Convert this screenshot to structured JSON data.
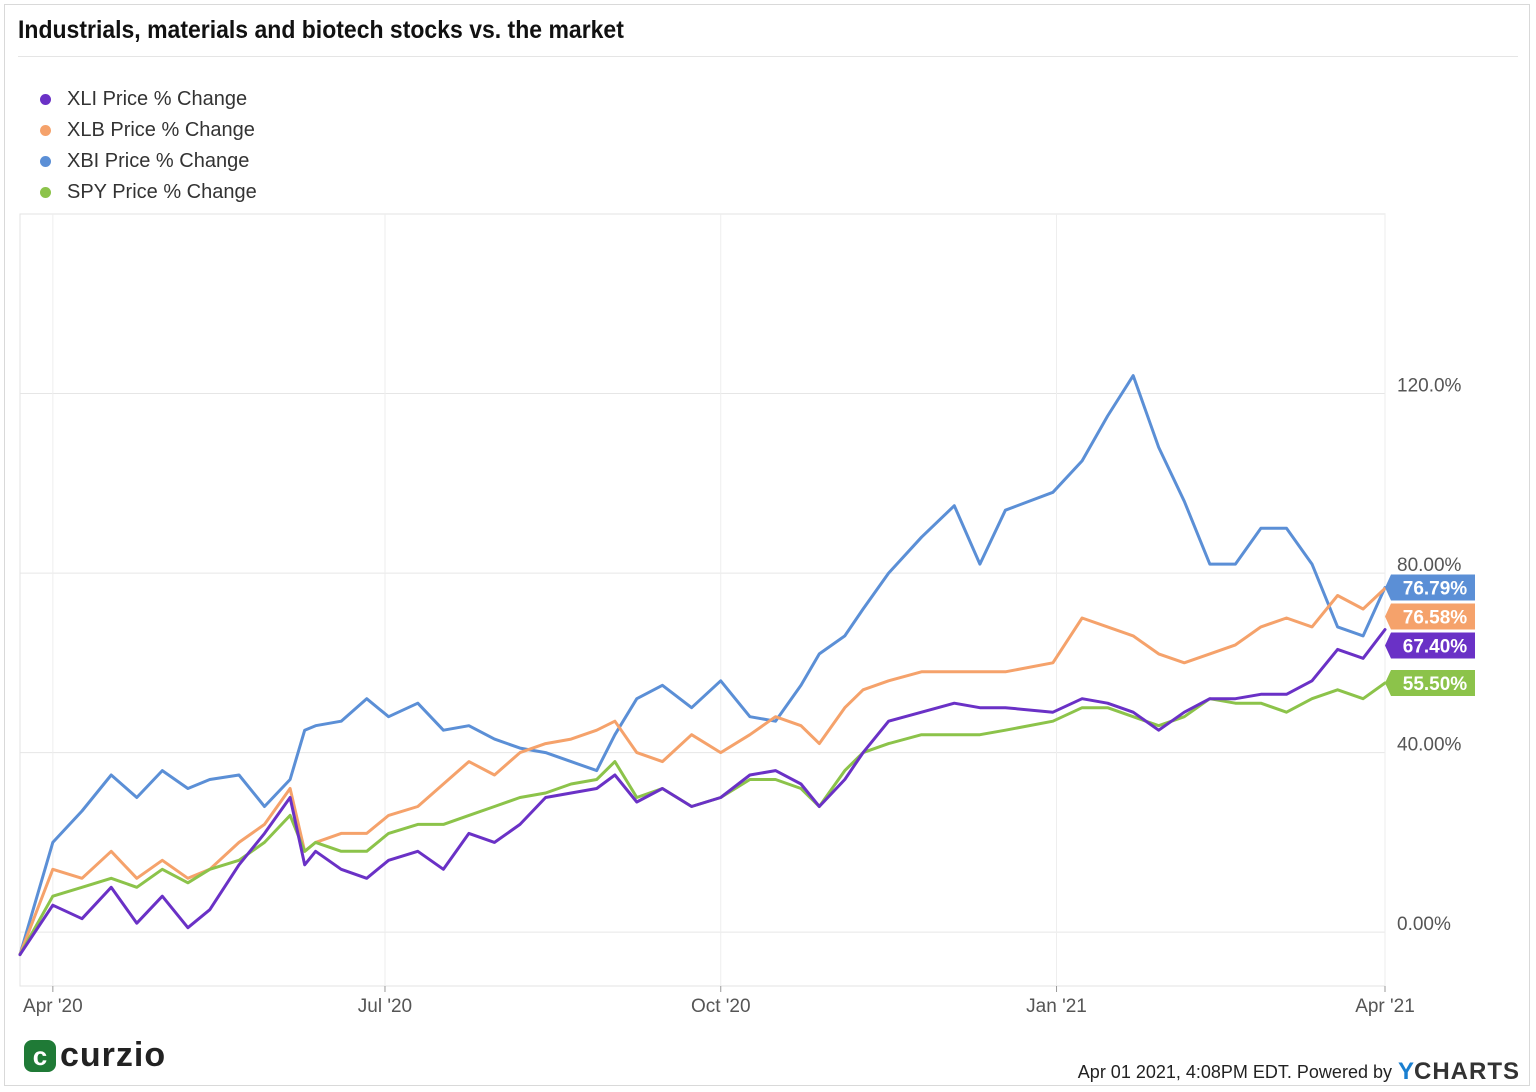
{
  "title": "Industrials, materials and biotech stocks vs. the market",
  "legend": [
    {
      "label": "XLI Price % Change",
      "color": "#6a31c6"
    },
    {
      "label": "XLB Price % Change",
      "color": "#f5a26b"
    },
    {
      "label": "XBI Price % Change",
      "color": "#5b8fd6"
    },
    {
      "label": "SPY Price % Change",
      "color": "#8cc34a"
    }
  ],
  "footer": {
    "logo_text": "curzio",
    "logo_mark": "c",
    "timestamp": "Apr 01 2021, 4:08PM EDT. Powered by",
    "brand_y": "Y",
    "brand_rest": "CHARTS"
  },
  "chart_data": {
    "type": "line",
    "title": "Industrials, materials and biotech stocks vs. the market",
    "xlabel": "",
    "ylabel": "",
    "x_ticks": [
      "Apr '20",
      "Jul '20",
      "Oct '20",
      "Jan '21",
      "Apr '21"
    ],
    "y_ticks": [
      "0.00%",
      "40.00%",
      "80.00%",
      "120.0%"
    ],
    "y_tick_values": [
      0,
      40,
      80,
      120
    ],
    "ylim": [
      -12,
      160
    ],
    "xlim": [
      "2020-03-23",
      "2021-04-01"
    ],
    "grid": true,
    "legend_position": "top-left",
    "series": [
      {
        "name": "XLI Price % Change",
        "color": "#6a31c6",
        "end_label": "67.40%",
        "x": [
          "2020-03-23",
          "2020-04-01",
          "2020-04-09",
          "2020-04-17",
          "2020-04-24",
          "2020-05-01",
          "2020-05-08",
          "2020-05-14",
          "2020-05-22",
          "2020-05-29",
          "2020-06-05",
          "2020-06-09",
          "2020-06-12",
          "2020-06-19",
          "2020-06-26",
          "2020-07-02",
          "2020-07-10",
          "2020-07-17",
          "2020-07-24",
          "2020-07-31",
          "2020-08-07",
          "2020-08-14",
          "2020-08-21",
          "2020-08-28",
          "2020-09-02",
          "2020-09-08",
          "2020-09-15",
          "2020-09-23",
          "2020-10-01",
          "2020-10-09",
          "2020-10-16",
          "2020-10-23",
          "2020-10-28",
          "2020-11-04",
          "2020-11-09",
          "2020-11-16",
          "2020-11-25",
          "2020-12-04",
          "2020-12-11",
          "2020-12-18",
          "2020-12-31",
          "2021-01-08",
          "2021-01-15",
          "2021-01-22",
          "2021-01-29",
          "2021-02-05",
          "2021-02-12",
          "2021-02-19",
          "2021-02-26",
          "2021-03-05",
          "2021-03-12",
          "2021-03-19",
          "2021-03-26",
          "2021-04-01"
        ],
        "y": [
          -5,
          6,
          3,
          10,
          2,
          8,
          1,
          5,
          15,
          22,
          30,
          15,
          18,
          14,
          12,
          16,
          18,
          14,
          22,
          20,
          24,
          30,
          31,
          32,
          35,
          29,
          32,
          28,
          30,
          35,
          36,
          33,
          28,
          34,
          40,
          47,
          49,
          51,
          50,
          50,
          49,
          52,
          51,
          49,
          45,
          49,
          52,
          52,
          53,
          53,
          56,
          63,
          61,
          67.4
        ]
      },
      {
        "name": "XLB Price % Change",
        "color": "#f5a26b",
        "end_label": "76.58%",
        "x": [
          "2020-03-23",
          "2020-04-01",
          "2020-04-09",
          "2020-04-17",
          "2020-04-24",
          "2020-05-01",
          "2020-05-08",
          "2020-05-14",
          "2020-05-22",
          "2020-05-29",
          "2020-06-05",
          "2020-06-09",
          "2020-06-12",
          "2020-06-19",
          "2020-06-26",
          "2020-07-02",
          "2020-07-10",
          "2020-07-17",
          "2020-07-24",
          "2020-07-31",
          "2020-08-07",
          "2020-08-14",
          "2020-08-21",
          "2020-08-28",
          "2020-09-02",
          "2020-09-08",
          "2020-09-15",
          "2020-09-23",
          "2020-10-01",
          "2020-10-09",
          "2020-10-16",
          "2020-10-23",
          "2020-10-28",
          "2020-11-04",
          "2020-11-09",
          "2020-11-16",
          "2020-11-25",
          "2020-12-04",
          "2020-12-11",
          "2020-12-18",
          "2020-12-31",
          "2021-01-08",
          "2021-01-15",
          "2021-01-22",
          "2021-01-29",
          "2021-02-05",
          "2021-02-12",
          "2021-02-19",
          "2021-02-26",
          "2021-03-05",
          "2021-03-12",
          "2021-03-19",
          "2021-03-26",
          "2021-04-01"
        ],
        "y": [
          -5,
          14,
          12,
          18,
          12,
          16,
          12,
          14,
          20,
          24,
          32,
          18,
          20,
          22,
          22,
          26,
          28,
          33,
          38,
          35,
          40,
          42,
          43,
          45,
          47,
          40,
          38,
          44,
          40,
          44,
          48,
          46,
          42,
          50,
          54,
          56,
          58,
          58,
          58,
          58,
          60,
          70,
          68,
          66,
          62,
          60,
          62,
          64,
          68,
          70,
          68,
          75,
          72,
          76.58
        ]
      },
      {
        "name": "XBI Price % Change",
        "color": "#5b8fd6",
        "end_label": "76.79%",
        "x": [
          "2020-03-23",
          "2020-04-01",
          "2020-04-09",
          "2020-04-17",
          "2020-04-24",
          "2020-05-01",
          "2020-05-08",
          "2020-05-14",
          "2020-05-22",
          "2020-05-29",
          "2020-06-05",
          "2020-06-09",
          "2020-06-12",
          "2020-06-19",
          "2020-06-26",
          "2020-07-02",
          "2020-07-10",
          "2020-07-17",
          "2020-07-24",
          "2020-07-31",
          "2020-08-07",
          "2020-08-14",
          "2020-08-21",
          "2020-08-28",
          "2020-09-02",
          "2020-09-08",
          "2020-09-15",
          "2020-09-23",
          "2020-10-01",
          "2020-10-09",
          "2020-10-16",
          "2020-10-23",
          "2020-10-28",
          "2020-11-04",
          "2020-11-09",
          "2020-11-16",
          "2020-11-25",
          "2020-12-04",
          "2020-12-11",
          "2020-12-18",
          "2020-12-31",
          "2021-01-08",
          "2021-01-15",
          "2021-01-22",
          "2021-01-29",
          "2021-02-05",
          "2021-02-12",
          "2021-02-19",
          "2021-02-26",
          "2021-03-05",
          "2021-03-12",
          "2021-03-19",
          "2021-03-26",
          "2021-04-01"
        ],
        "y": [
          -5,
          20,
          27,
          35,
          30,
          36,
          32,
          34,
          35,
          28,
          34,
          45,
          46,
          47,
          52,
          48,
          51,
          45,
          46,
          43,
          41,
          40,
          38,
          36,
          44,
          52,
          55,
          50,
          56,
          48,
          47,
          55,
          62,
          66,
          72,
          80,
          88,
          95,
          82,
          94,
          98,
          105,
          115,
          124,
          108,
          96,
          82,
          82,
          90,
          90,
          82,
          68,
          66,
          76.79
        ]
      },
      {
        "name": "SPY Price % Change",
        "color": "#8cc34a",
        "end_label": "55.50%",
        "x": [
          "2020-03-23",
          "2020-04-01",
          "2020-04-09",
          "2020-04-17",
          "2020-04-24",
          "2020-05-01",
          "2020-05-08",
          "2020-05-14",
          "2020-05-22",
          "2020-05-29",
          "2020-06-05",
          "2020-06-09",
          "2020-06-12",
          "2020-06-19",
          "2020-06-26",
          "2020-07-02",
          "2020-07-10",
          "2020-07-17",
          "2020-07-24",
          "2020-07-31",
          "2020-08-07",
          "2020-08-14",
          "2020-08-21",
          "2020-08-28",
          "2020-09-02",
          "2020-09-08",
          "2020-09-15",
          "2020-09-23",
          "2020-10-01",
          "2020-10-09",
          "2020-10-16",
          "2020-10-23",
          "2020-10-28",
          "2020-11-04",
          "2020-11-09",
          "2020-11-16",
          "2020-11-25",
          "2020-12-04",
          "2020-12-11",
          "2020-12-18",
          "2020-12-31",
          "2021-01-08",
          "2021-01-15",
          "2021-01-22",
          "2021-01-29",
          "2021-02-05",
          "2021-02-12",
          "2021-02-19",
          "2021-02-26",
          "2021-03-05",
          "2021-03-12",
          "2021-03-19",
          "2021-03-26",
          "2021-04-01"
        ],
        "y": [
          -5,
          8,
          10,
          12,
          10,
          14,
          11,
          14,
          16,
          20,
          26,
          18,
          20,
          18,
          18,
          22,
          24,
          24,
          26,
          28,
          30,
          31,
          33,
          34,
          38,
          30,
          32,
          28,
          30,
          34,
          34,
          32,
          28,
          36,
          40,
          42,
          44,
          44,
          44,
          45,
          47,
          50,
          50,
          48,
          46,
          48,
          52,
          51,
          51,
          49,
          52,
          54,
          52,
          55.5
        ]
      }
    ]
  }
}
